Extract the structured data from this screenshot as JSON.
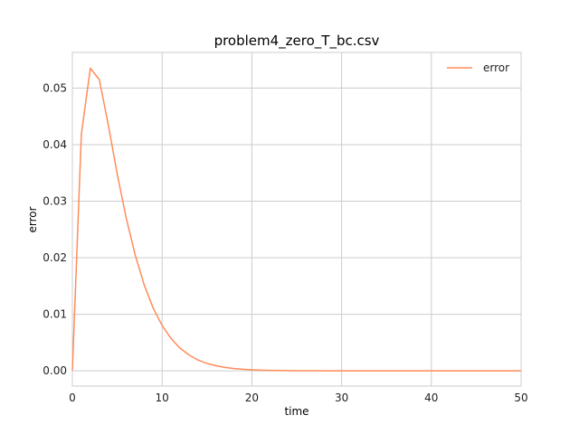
{
  "chart_data": {
    "type": "line",
    "title": "problem4_zero_T_bc.csv",
    "xlabel": "time",
    "ylabel": "error",
    "xlim": [
      0,
      50
    ],
    "ylim": [
      -0.0027,
      0.0563
    ],
    "x_ticks": [
      0,
      10,
      20,
      30,
      40,
      50
    ],
    "y_ticks": [
      0.0,
      0.01,
      0.02,
      0.03,
      0.04,
      0.05
    ],
    "y_tick_labels": [
      "0.00",
      "0.01",
      "0.02",
      "0.03",
      "0.04",
      "0.05"
    ],
    "grid": true,
    "legend_position": "top-right",
    "series": [
      {
        "name": "error",
        "color": "#ff8c5a",
        "x": [
          0,
          1,
          2,
          3,
          4,
          5,
          6,
          7,
          8,
          9,
          10,
          11,
          12,
          13,
          14,
          15,
          16,
          17,
          18,
          19,
          20,
          21,
          22,
          23,
          24,
          25,
          26,
          27,
          28,
          29,
          30,
          31,
          32,
          33,
          34,
          35,
          36,
          37,
          38,
          39,
          40,
          41,
          42,
          43,
          44,
          45,
          46,
          47,
          48,
          49,
          50
        ],
        "y": [
          0.0,
          0.0418,
          0.0535,
          0.0515,
          0.0435,
          0.0348,
          0.027,
          0.0205,
          0.0152,
          0.0111,
          0.008,
          0.0057,
          0.004,
          0.0028,
          0.0019,
          0.0013,
          0.0009,
          0.0006,
          0.0004,
          0.00027,
          0.00018,
          0.00012,
          8e-05,
          5e-05,
          3e-05,
          2e-05,
          1e-05,
          1e-05,
          0.0,
          0.0,
          0.0,
          0.0,
          0.0,
          0.0,
          0.0,
          0.0,
          0.0,
          0.0,
          0.0,
          0.0,
          0.0,
          0.0,
          0.0,
          0.0,
          0.0,
          0.0,
          0.0,
          0.0,
          0.0,
          0.0,
          0.0
        ]
      }
    ]
  }
}
